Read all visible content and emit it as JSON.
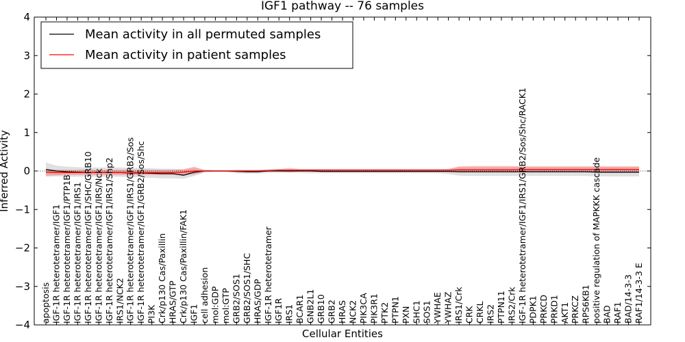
{
  "chart_data": {
    "type": "line",
    "title": "IGF1 pathway -- 76 samples",
    "xlabel": "Cellular Entities",
    "ylabel": "Inferred Activity",
    "ylim": [
      -4,
      4
    ],
    "yticks": [
      -4,
      -3,
      -2,
      -1,
      0,
      1,
      2,
      3,
      4
    ],
    "ytick_labels": [
      "−4",
      "−3",
      "−2",
      "−1",
      "0",
      "1",
      "2",
      "3",
      "4"
    ],
    "legend": {
      "placement": "top-left",
      "entries": [
        {
          "label": "Mean activity in all permuted samples",
          "color": "#000000"
        },
        {
          "label": "Mean activity in patient samples",
          "color": "#ff0000"
        }
      ]
    },
    "categories": [
      "apoptosis",
      "IGF-1R heterotetramer/IGF1",
      "IGF-1R heterotetramer/IGF1/PTP1B",
      "IGF-1R heterotetramer/IGF1/IRS1",
      "IGF-1R heterotetramer/IGF1/SHC/GRB10",
      "IGF-1R heterotetramer/IGF1/IRS/Nck",
      "IGF-1R heterotetramer/IGF1/IRS1/Shp2",
      "IRS1/NCK2",
      "IGF-1R heterotetramer/IGF1/IRS1/GRB2/Sos",
      "IGF-1R heterotetramer/IGF1/GRB2/Sos/Shc",
      "PI3K",
      "Crk/p130 Cas/Paxillin",
      "HRAS/GTP",
      "Crk/p130 Cas/Paxillin/FAK1",
      "IGF1",
      "cell adhesion",
      "mol:GDP",
      "mol:GTP",
      "GRB2/SOS1",
      "GRB2/SOS1/SHC",
      "HRAS/GDP",
      "IGF-1R heterotetramer",
      "IGF1R",
      "IRS1",
      "BCAR1",
      "GNB2L1",
      "GRB10",
      "GRB2",
      "HRAS",
      "NCK2",
      "PIK3CA",
      "PIK3R1",
      "PTK2",
      "PTPN1",
      "PXN",
      "SHC1",
      "SOS1",
      "YWHAE",
      "YWHAZ",
      "IRS1/Crk",
      "CRK",
      "CRKL",
      "IRS2",
      "PTPN11",
      "IRS2/Crk",
      "IGF-1R heterotetramer/IGF1/IRS1/GRB2/Sos/Shc/RACK1",
      "PDPK1",
      "PRKCD",
      "PRKD1",
      "AKT1",
      "PRKCZ",
      "RPS6KB1",
      "positive regulation of MAPKKK cascade",
      "BAD",
      "RAF1",
      "BAD/14-3-3",
      "RAF1/14-3-3 E"
    ],
    "series": [
      {
        "name": "Mean activity in all permuted samples",
        "color": "#000000",
        "values": [
          0.04,
          0.0,
          -0.02,
          -0.03,
          -0.04,
          -0.04,
          -0.04,
          -0.04,
          -0.05,
          -0.05,
          -0.06,
          -0.07,
          -0.07,
          -0.11,
          -0.03,
          0.0,
          0.0,
          0.0,
          -0.01,
          -0.02,
          -0.02,
          0.0,
          0.0,
          0.0,
          0.0,
          0.0,
          -0.01,
          -0.01,
          -0.01,
          -0.01,
          -0.01,
          -0.01,
          -0.01,
          -0.01,
          -0.01,
          -0.01,
          -0.01,
          -0.01,
          -0.01,
          -0.02,
          -0.02,
          -0.02,
          -0.02,
          -0.02,
          -0.02,
          -0.02,
          -0.02,
          -0.02,
          -0.02,
          -0.02,
          -0.02,
          -0.02,
          -0.03,
          -0.03,
          -0.03,
          -0.03,
          -0.03
        ],
        "lower": [
          -0.15,
          -0.14,
          -0.15,
          -0.15,
          -0.15,
          -0.15,
          -0.15,
          -0.15,
          -0.16,
          -0.16,
          -0.18,
          -0.19,
          -0.19,
          -0.2,
          -0.13,
          -0.04,
          -0.03,
          -0.03,
          -0.06,
          -0.07,
          -0.07,
          -0.05,
          -0.05,
          -0.05,
          -0.05,
          -0.06,
          -0.06,
          -0.06,
          -0.06,
          -0.06,
          -0.06,
          -0.06,
          -0.06,
          -0.06,
          -0.06,
          -0.06,
          -0.06,
          -0.06,
          -0.08,
          -0.12,
          -0.13,
          -0.13,
          -0.13,
          -0.13,
          -0.13,
          -0.13,
          -0.13,
          -0.13,
          -0.13,
          -0.13,
          -0.13,
          -0.13,
          -0.14,
          -0.14,
          -0.14,
          -0.14,
          -0.14
        ],
        "upper": [
          0.22,
          0.14,
          0.11,
          0.1,
          0.09,
          0.09,
          0.09,
          0.09,
          0.08,
          0.08,
          0.07,
          0.06,
          0.06,
          0.04,
          0.08,
          0.04,
          0.03,
          0.03,
          0.04,
          0.04,
          0.04,
          0.05,
          0.05,
          0.05,
          0.05,
          0.05,
          0.05,
          0.05,
          0.05,
          0.05,
          0.05,
          0.05,
          0.05,
          0.05,
          0.05,
          0.05,
          0.05,
          0.05,
          0.06,
          0.1,
          0.1,
          0.1,
          0.1,
          0.1,
          0.1,
          0.11,
          0.11,
          0.11,
          0.11,
          0.11,
          0.11,
          0.11,
          0.11,
          0.11,
          0.11,
          0.11,
          0.11
        ]
      },
      {
        "name": "Mean activity in patient samples",
        "color": "#ff0000",
        "values": [
          -0.03,
          -0.04,
          -0.04,
          -0.04,
          -0.04,
          -0.04,
          -0.04,
          -0.04,
          -0.04,
          -0.04,
          -0.04,
          -0.04,
          -0.04,
          -0.03,
          0.0,
          0.0,
          0.0,
          0.0,
          0.0,
          0.0,
          0.0,
          0.01,
          0.02,
          0.02,
          0.02,
          0.02,
          0.02,
          0.02,
          0.02,
          0.02,
          0.02,
          0.02,
          0.02,
          0.02,
          0.02,
          0.02,
          0.02,
          0.02,
          0.02,
          0.03,
          0.03,
          0.03,
          0.03,
          0.03,
          0.03,
          0.04,
          0.04,
          0.04,
          0.04,
          0.04,
          0.04,
          0.04,
          0.04,
          0.04,
          0.04,
          0.04,
          0.04
        ],
        "lower": [
          -0.12,
          -0.11,
          -0.1,
          -0.1,
          -0.1,
          -0.1,
          -0.1,
          -0.1,
          -0.1,
          -0.1,
          -0.1,
          -0.1,
          -0.1,
          -0.1,
          -0.09,
          -0.02,
          -0.01,
          -0.01,
          -0.02,
          -0.02,
          -0.02,
          -0.01,
          -0.01,
          -0.03,
          -0.01,
          -0.01,
          -0.01,
          -0.01,
          -0.01,
          -0.01,
          -0.01,
          -0.01,
          -0.01,
          -0.01,
          -0.01,
          -0.01,
          -0.01,
          -0.01,
          -0.01,
          -0.03,
          -0.03,
          -0.03,
          -0.03,
          -0.03,
          -0.03,
          -0.03,
          -0.03,
          -0.03,
          -0.03,
          -0.03,
          -0.03,
          -0.03,
          -0.03,
          -0.03,
          -0.03,
          -0.03,
          -0.03
        ],
        "upper": [
          0.04,
          0.03,
          0.03,
          0.03,
          0.03,
          0.03,
          0.03,
          0.03,
          0.03,
          0.03,
          0.03,
          0.03,
          0.03,
          0.05,
          0.11,
          0.02,
          0.01,
          0.01,
          0.02,
          0.02,
          0.02,
          0.03,
          0.05,
          0.08,
          0.05,
          0.05,
          0.05,
          0.05,
          0.05,
          0.05,
          0.05,
          0.05,
          0.05,
          0.05,
          0.05,
          0.05,
          0.05,
          0.05,
          0.05,
          0.12,
          0.13,
          0.13,
          0.13,
          0.13,
          0.13,
          0.12,
          0.12,
          0.12,
          0.12,
          0.12,
          0.12,
          0.12,
          0.12,
          0.12,
          0.12,
          0.12,
          0.12
        ]
      }
    ],
    "reference_line": {
      "y": 0,
      "style": "dotted"
    }
  }
}
